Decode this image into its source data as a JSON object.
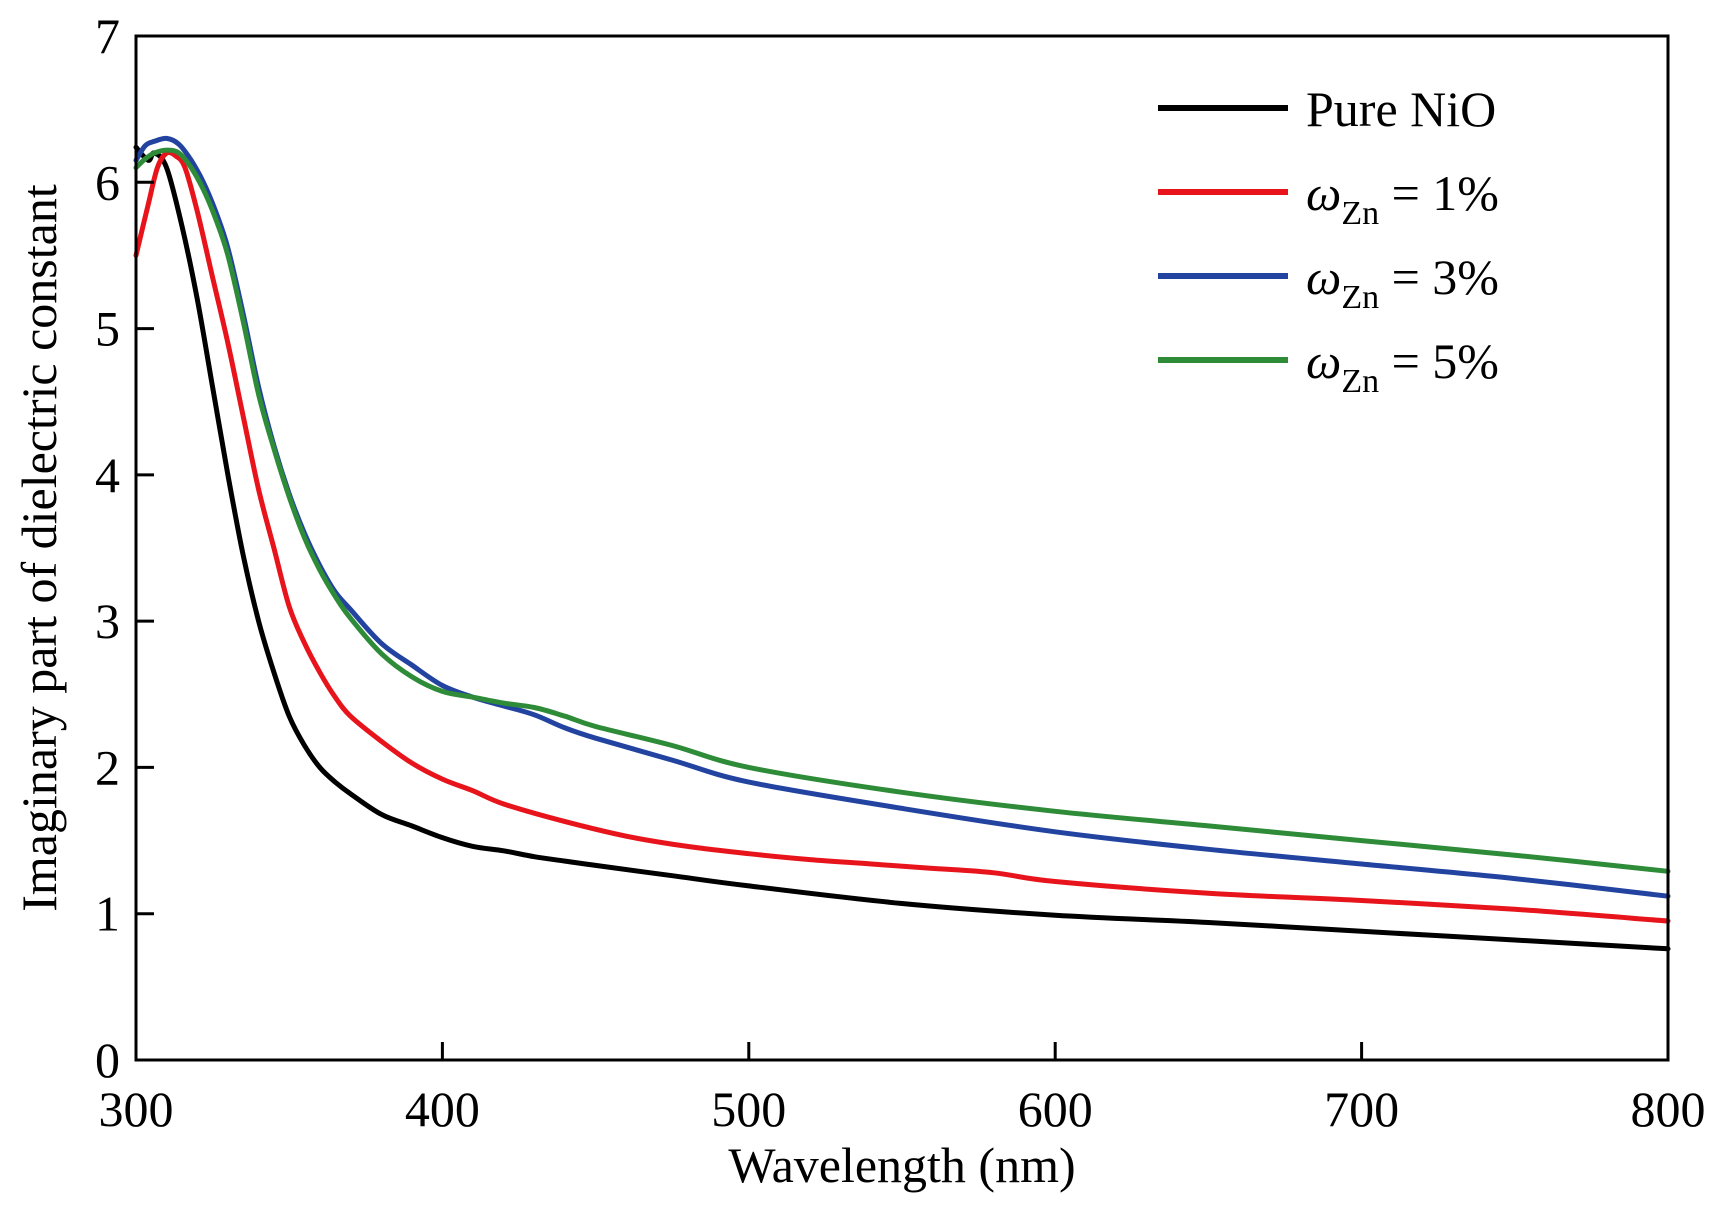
{
  "chart_data": {
    "type": "line",
    "xlabel": "Wavelength (nm)",
    "ylabel": "Imaginary part of dielectric constant",
    "xlim": [
      300,
      800
    ],
    "ylim": [
      0,
      7
    ],
    "xticks": [
      300,
      400,
      500,
      600,
      700,
      800
    ],
    "yticks": [
      0,
      1,
      2,
      3,
      4,
      5,
      6,
      7
    ],
    "grid": false,
    "legend_position": "top-right",
    "series": [
      {
        "name": "Pure NiO",
        "legend_main": "Pure NiO",
        "legend_sub": "",
        "legend_suffix": "",
        "color": "#000000",
        "x": [
          300,
          304,
          306,
          310,
          315,
          320,
          325,
          330,
          335,
          340,
          345,
          350,
          355,
          360,
          365,
          370,
          380,
          390,
          400,
          410,
          420,
          430,
          440,
          450,
          475,
          500,
          550,
          600,
          650,
          700,
          750,
          800
        ],
        "y": [
          6.24,
          6.15,
          6.2,
          6.1,
          5.7,
          5.2,
          4.6,
          4.0,
          3.45,
          3.0,
          2.65,
          2.35,
          2.15,
          2.0,
          1.9,
          1.82,
          1.68,
          1.6,
          1.52,
          1.46,
          1.43,
          1.39,
          1.36,
          1.33,
          1.26,
          1.19,
          1.07,
          0.99,
          0.94,
          0.88,
          0.82,
          0.76
        ]
      },
      {
        "name": "ωZn = 1%",
        "legend_main": "ω",
        "legend_sub": "Zn",
        "legend_suffix": " = 1%",
        "color": "#e8141c",
        "x": [
          300,
          304,
          307,
          310,
          313,
          316,
          320,
          325,
          330,
          335,
          340,
          345,
          350,
          355,
          360,
          365,
          370,
          380,
          390,
          400,
          410,
          420,
          440,
          460,
          480,
          500,
          520,
          540,
          560,
          580,
          600,
          650,
          700,
          750,
          800
        ],
        "y": [
          5.5,
          5.85,
          6.1,
          6.2,
          6.18,
          6.1,
          5.8,
          5.35,
          4.9,
          4.4,
          3.9,
          3.5,
          3.1,
          2.85,
          2.65,
          2.48,
          2.35,
          2.18,
          2.03,
          1.92,
          1.84,
          1.75,
          1.63,
          1.53,
          1.46,
          1.41,
          1.37,
          1.34,
          1.31,
          1.28,
          1.22,
          1.14,
          1.09,
          1.03,
          0.95
        ]
      },
      {
        "name": "ωZn = 3%",
        "legend_main": "ω",
        "legend_sub": "Zn",
        "legend_suffix": " = 3%",
        "color": "#2244a0",
        "x": [
          300,
          303,
          306,
          310,
          314,
          318,
          322,
          326,
          330,
          335,
          340,
          345,
          350,
          355,
          360,
          365,
          370,
          380,
          390,
          400,
          410,
          420,
          430,
          440,
          450,
          475,
          500,
          550,
          600,
          650,
          700,
          750,
          800
        ],
        "y": [
          6.15,
          6.25,
          6.28,
          6.3,
          6.26,
          6.15,
          6.0,
          5.8,
          5.55,
          5.1,
          4.6,
          4.2,
          3.87,
          3.6,
          3.38,
          3.2,
          3.08,
          2.85,
          2.7,
          2.56,
          2.48,
          2.42,
          2.36,
          2.27,
          2.2,
          2.05,
          1.9,
          1.72,
          1.56,
          1.44,
          1.34,
          1.24,
          1.12
        ]
      },
      {
        "name": "ωZn = 5%",
        "legend_main": "ω",
        "legend_sub": "Zn",
        "legend_suffix": " = 5%",
        "color": "#2e8b38",
        "x": [
          300,
          303,
          306,
          310,
          314,
          318,
          322,
          326,
          330,
          335,
          340,
          345,
          350,
          355,
          360,
          365,
          370,
          380,
          390,
          400,
          410,
          420,
          430,
          440,
          450,
          475,
          500,
          550,
          600,
          650,
          700,
          750,
          800
        ],
        "y": [
          6.1,
          6.16,
          6.2,
          6.22,
          6.2,
          6.1,
          5.95,
          5.75,
          5.5,
          5.05,
          4.55,
          4.18,
          3.85,
          3.57,
          3.35,
          3.17,
          3.02,
          2.78,
          2.62,
          2.52,
          2.48,
          2.44,
          2.41,
          2.35,
          2.28,
          2.15,
          2.0,
          1.83,
          1.7,
          1.6,
          1.5,
          1.4,
          1.29
        ]
      }
    ]
  }
}
